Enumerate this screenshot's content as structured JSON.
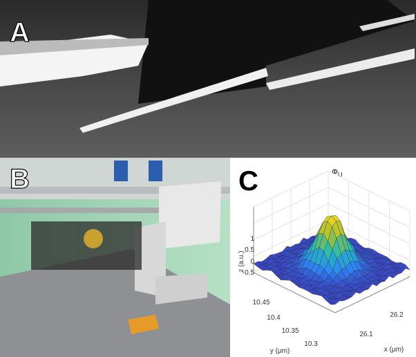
{
  "panels": [
    {
      "label": "A"
    },
    {
      "label": "B"
    },
    {
      "label": "C",
      "title": "Φ",
      "title_sub": "LI",
      "z_label": "z (a.u.)",
      "y_label": "y (μm)",
      "x_label": "x (μm)",
      "z_ticks": [
        "1",
        "0.5",
        "0",
        "-0.5"
      ],
      "y_ticks": [
        "10.45",
        "10.4",
        "10.35",
        "10.3"
      ],
      "x_ticks": [
        "26.2",
        "26.1"
      ]
    }
  ]
}
